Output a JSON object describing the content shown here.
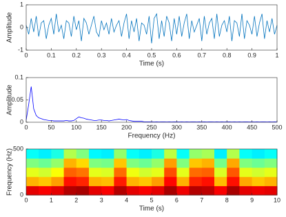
{
  "chart_data": [
    {
      "type": "line",
      "ylabel": "Amplitude",
      "xlabel": "Time (s)",
      "color": "#0072bd",
      "x": [
        0,
        0.01,
        0.02,
        0.03,
        0.04,
        0.05,
        0.06,
        0.07,
        0.08,
        0.09,
        0.1,
        0.11,
        0.12,
        0.13,
        0.14,
        0.15,
        0.16,
        0.17,
        0.18,
        0.19,
        0.2,
        0.21,
        0.22,
        0.23,
        0.24,
        0.25,
        0.26,
        0.27,
        0.28,
        0.29,
        0.3,
        0.31,
        0.32,
        0.33,
        0.34,
        0.35,
        0.36,
        0.37,
        0.38,
        0.39,
        0.4,
        0.41,
        0.42,
        0.43,
        0.44,
        0.45,
        0.46,
        0.47,
        0.48,
        0.49,
        0.5,
        0.51,
        0.52,
        0.53,
        0.54,
        0.55,
        0.56,
        0.57,
        0.58,
        0.59,
        0.6,
        0.61,
        0.62,
        0.63,
        0.64,
        0.65,
        0.66,
        0.67,
        0.68,
        0.69,
        0.7,
        0.71,
        0.72,
        0.73,
        0.74,
        0.75,
        0.76,
        0.77,
        0.78,
        0.79,
        0.8,
        0.81,
        0.82,
        0.83,
        0.84,
        0.85,
        0.86,
        0.87,
        0.88,
        0.89,
        0.9,
        0.91,
        0.92,
        0.93,
        0.94,
        0.95,
        0.96,
        0.97,
        0.98,
        0.99,
        1
      ],
      "values": [
        0.1,
        -0.3,
        0.4,
        -0.2,
        0.5,
        -0.4,
        0.2,
        0.3,
        -0.5,
        0.1,
        0.4,
        -0.3,
        0.6,
        -0.2,
        0.1,
        -0.5,
        0.3,
        0.2,
        -0.4,
        0.5,
        -0.1,
        0.3,
        -0.6,
        0.4,
        0.2,
        -0.3,
        0.1,
        0.5,
        -0.2,
        -0.4,
        0.3,
        -0.1,
        0.2,
        -0.3,
        0.4,
        -0.2,
        0.1,
        0.3,
        -0.4,
        0.2,
        0.6,
        -0.5,
        0.3,
        -0.2,
        0.4,
        -0.6,
        0.2,
        0.1,
        -0.3,
        0.5,
        -0.7,
        0.4,
        0.6,
        -0.5,
        0.3,
        -0.4,
        0.5,
        0.2,
        -0.6,
        0.4,
        -0.3,
        0.5,
        -0.4,
        0.2,
        0.6,
        -0.5,
        0.3,
        -0.2,
        0.1,
        0.4,
        -0.6,
        0.5,
        -0.3,
        0.2,
        0.4,
        -0.5,
        0.6,
        -0.4,
        0.1,
        0.3,
        -0.2,
        0.5,
        -0.6,
        0.3,
        0.2,
        -0.4,
        0.6,
        -0.5,
        0.3,
        0.1,
        -0.3,
        0.5,
        -0.4,
        0.2,
        0.6,
        -0.5,
        0.3,
        -0.2,
        0.4,
        -0.3,
        0.1
      ],
      "xlim": [
        0,
        1
      ],
      "xticks": [
        0,
        0.1,
        0.2,
        0.3,
        0.4,
        0.5,
        0.6,
        0.7,
        0.8,
        0.9,
        1
      ],
      "ylim": [
        -1,
        1
      ],
      "yticks": [
        -1,
        0,
        1
      ]
    },
    {
      "type": "line",
      "ylabel": "Amplitude",
      "xlabel": "Frequency (Hz)",
      "color": "#0000ff",
      "x": [
        0,
        5,
        10,
        15,
        20,
        25,
        30,
        35,
        40,
        45,
        50,
        55,
        60,
        65,
        70,
        75,
        80,
        85,
        90,
        95,
        100,
        105,
        110,
        115,
        120,
        125,
        130,
        135,
        140,
        145,
        150,
        155,
        160,
        165,
        170,
        175,
        180,
        185,
        190,
        195,
        200,
        205,
        210,
        215,
        220,
        225,
        230,
        235,
        240,
        245,
        250,
        255,
        260,
        265,
        270,
        275,
        280,
        285,
        290,
        295,
        300,
        305,
        310,
        315,
        320,
        325,
        330,
        335,
        340,
        345,
        350,
        355,
        360,
        365,
        370,
        375,
        380,
        385,
        390,
        395,
        400,
        405,
        410,
        415,
        420,
        425,
        430,
        435,
        440,
        445,
        450,
        455,
        460,
        465,
        470,
        475,
        480,
        485,
        490,
        495,
        500
      ],
      "values": [
        0.005,
        0.04,
        0.08,
        0.03,
        0.015,
        0.01,
        0.008,
        0.006,
        0.005,
        0.004,
        0.004,
        0.003,
        0.003,
        0.003,
        0.003,
        0.003,
        0.004,
        0.003,
        0.003,
        0.004,
        0.008,
        0.012,
        0.01,
        0.009,
        0.007,
        0.006,
        0.005,
        0.004,
        0.004,
        0.005,
        0.005,
        0.004,
        0.004,
        0.003,
        0.004,
        0.005,
        0.006,
        0.007,
        0.006,
        0.005,
        0.006,
        0.004,
        0.003,
        0.002,
        0.002,
        0.002,
        0.002,
        0.001,
        0.001,
        0.001,
        0.001,
        0.0005,
        0.001,
        0.0005,
        0.001,
        0.001,
        0.0005,
        0.001,
        0.0005,
        0.001,
        0.001,
        0.0005,
        0.001,
        0.0005,
        0.001,
        0.0005,
        0.001,
        0.001,
        0.0005,
        0.001,
        0.0005,
        0.001,
        0.0005,
        0.001,
        0.001,
        0.0005,
        0.001,
        0.0005,
        0.001,
        0.0005,
        0.001,
        0.001,
        0.0005,
        0.001,
        0.0005,
        0.001,
        0.0005,
        0.001,
        0.001,
        0.0005,
        0.001,
        0.0005,
        0.001,
        0.0005,
        0.001,
        0.001,
        0.0005,
        0.001,
        0.0005,
        0.001,
        0.0005
      ],
      "xlim": [
        0,
        500
      ],
      "xticks": [
        0,
        50,
        100,
        150,
        200,
        250,
        300,
        350,
        400,
        450,
        500
      ],
      "ylim": [
        0,
        0.1
      ],
      "yticks": [
        0,
        0.05,
        0.1
      ]
    },
    {
      "type": "heatmap",
      "ylabel": "Frequency (Hz)",
      "xlabel": "Time (s)",
      "colormap": "jet",
      "x": [
        0.25,
        0.75,
        1.25,
        1.75,
        2.25,
        2.75,
        3.25,
        3.75,
        4.25,
        4.75,
        5.25,
        5.75,
        6.25,
        6.75,
        7.25,
        7.75,
        8.25,
        8.75,
        9.25,
        9.75
      ],
      "y": [
        50,
        150,
        250,
        350,
        450
      ],
      "values": [
        [
          0.9,
          0.88,
          0.9,
          0.95,
          0.96,
          0.9,
          0.88,
          0.95,
          0.9,
          0.88,
          0.9,
          0.96,
          0.89,
          0.95,
          0.94,
          0.88,
          0.96,
          0.9,
          0.89,
          0.9
        ],
        [
          0.7,
          0.68,
          0.72,
          0.86,
          0.84,
          0.7,
          0.69,
          0.85,
          0.7,
          0.68,
          0.72,
          0.87,
          0.7,
          0.84,
          0.86,
          0.69,
          0.86,
          0.71,
          0.68,
          0.7
        ],
        [
          0.6,
          0.58,
          0.62,
          0.78,
          0.76,
          0.6,
          0.59,
          0.77,
          0.61,
          0.58,
          0.6,
          0.8,
          0.6,
          0.77,
          0.78,
          0.59,
          0.79,
          0.6,
          0.58,
          0.6
        ],
        [
          0.5,
          0.48,
          0.52,
          0.7,
          0.66,
          0.5,
          0.49,
          0.68,
          0.5,
          0.48,
          0.52,
          0.72,
          0.5,
          0.68,
          0.7,
          0.49,
          0.71,
          0.5,
          0.48,
          0.5
        ],
        [
          0.38,
          0.36,
          0.4,
          0.55,
          0.5,
          0.37,
          0.36,
          0.52,
          0.38,
          0.36,
          0.4,
          0.56,
          0.38,
          0.52,
          0.54,
          0.36,
          0.55,
          0.38,
          0.36,
          0.38
        ]
      ],
      "xlim": [
        0,
        10
      ],
      "xticks": [
        0,
        1,
        2,
        3,
        4,
        5,
        6,
        7,
        8,
        9,
        10
      ],
      "ylim": [
        0,
        500
      ],
      "yticks": [
        0,
        500
      ]
    }
  ]
}
